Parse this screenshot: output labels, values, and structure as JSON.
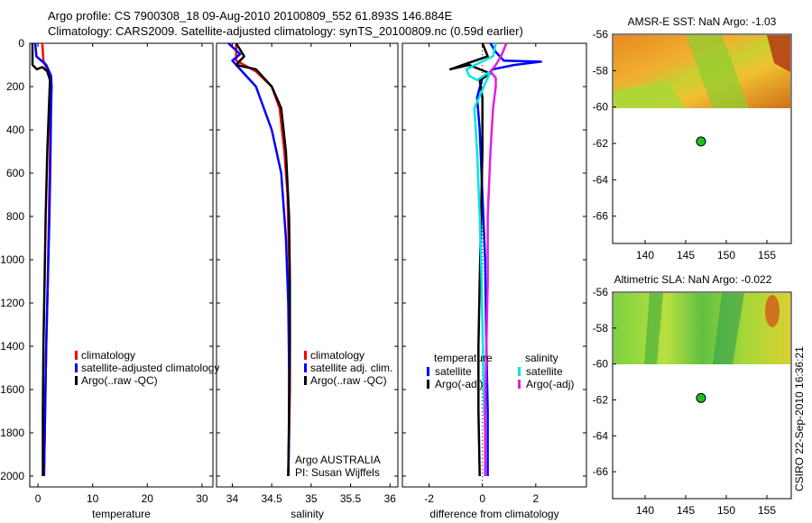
{
  "title": {
    "line1": "Argo profile: CS 7900308_18 09-Aug-2010 20100809_552 61.893S 146.884E",
    "line2": "Climatology: CARS2009. Satellite-adjusted climatology: synTS_20100809.nc (0.59d earlier)"
  },
  "colors": {
    "climatology": "#ff0000",
    "satellite": "#0000ff",
    "argo": "#000000",
    "temp_satellite": "#0000ff",
    "sal_satellite": "#00e5e5",
    "sal_argo": "#e020e0",
    "marker": "#22bb22"
  },
  "chart_data": [
    {
      "type": "line",
      "name": "temperature-profile",
      "xlabel": "temperature",
      "xlim": [
        -1.5,
        32
      ],
      "xticks": [
        0,
        10,
        20,
        30
      ],
      "ylim": [
        2050,
        0
      ],
      "yticks": [
        0,
        200,
        400,
        600,
        800,
        1000,
        1200,
        1400,
        1600,
        1800,
        2000
      ],
      "legend": [
        "climatology",
        "satellite-adjusted climatology",
        "Argo(..raw -QC)"
      ],
      "series": [
        {
          "name": "climatology",
          "color": "#ff0000",
          "x": [
            0.8,
            1.0,
            1.8,
            2.2,
            2.3,
            2.3,
            2.2,
            2.0,
            1.8,
            1.5,
            1.3,
            1.1
          ],
          "y": [
            0,
            80,
            130,
            160,
            200,
            300,
            500,
            800,
            1100,
            1400,
            1700,
            2000
          ]
        },
        {
          "name": "satellite-adjusted climatology",
          "color": "#0000ff",
          "x": [
            -0.5,
            -0.3,
            1.5,
            2.4,
            2.5,
            2.4,
            2.3,
            2.1,
            1.8,
            1.5,
            1.3,
            1.1
          ],
          "y": [
            0,
            60,
            100,
            150,
            200,
            300,
            500,
            800,
            1100,
            1400,
            1700,
            2000
          ]
        },
        {
          "name": "Argo(..raw -QC)",
          "color": "#000000",
          "x": [
            -1.0,
            -1.0,
            -0.2,
            0.8,
            1.7,
            2.2,
            2.0,
            1.7,
            1.4,
            1.2,
            1.0,
            0.9,
            0.9
          ],
          "y": [
            0,
            100,
            120,
            110,
            130,
            170,
            300,
            500,
            800,
            1100,
            1400,
            1700,
            2000
          ]
        }
      ]
    },
    {
      "type": "line",
      "name": "salinity-profile",
      "xlabel": "salinity",
      "xlim": [
        33.8,
        36.1
      ],
      "xticks": [
        34,
        34.5,
        35,
        35.5,
        36
      ],
      "xticklabels": [
        "34",
        "34.5",
        "35",
        "35.5",
        "36"
      ],
      "ylim": [
        2050,
        0
      ],
      "legend": [
        "climatology",
        "satellite adj. clim.",
        "Argo(..raw -QC)"
      ],
      "annotation": [
        "Argo AUSTRALIA",
        "PI: Susan Wijffels"
      ],
      "series": [
        {
          "name": "climatology",
          "color": "#ff0000",
          "x": [
            34.05,
            34.05,
            34.3,
            34.5,
            34.6,
            34.66,
            34.7,
            34.72,
            34.73,
            34.73,
            34.72,
            34.71
          ],
          "y": [
            0,
            80,
            130,
            200,
            300,
            500,
            700,
            1000,
            1300,
            1600,
            1800,
            2000
          ]
        },
        {
          "name": "satellite adj. clim.",
          "color": "#0000ff",
          "x": [
            33.95,
            34.1,
            34.0,
            34.05,
            34.3,
            34.5,
            34.62,
            34.68,
            34.71,
            34.72,
            34.72,
            34.71
          ],
          "y": [
            0,
            50,
            80,
            100,
            200,
            400,
            600,
            900,
            1200,
            1500,
            1800,
            2000
          ]
        },
        {
          "name": "Argo(..raw -QC)",
          "color": "#000000",
          "x": [
            34.05,
            34.15,
            34.05,
            34.3,
            34.5,
            34.62,
            34.68,
            34.72,
            34.73,
            34.73,
            34.72,
            34.71
          ],
          "y": [
            0,
            60,
            100,
            120,
            200,
            300,
            500,
            800,
            1100,
            1400,
            1700,
            2000
          ]
        }
      ]
    },
    {
      "type": "line",
      "name": "difference-from-climatology",
      "xlabel": "difference from climatology",
      "xlim": [
        -3,
        3.9
      ],
      "xticks": [
        -2,
        0,
        2
      ],
      "ylim": [
        2050,
        0
      ],
      "legend_groups": [
        {
          "title": "temperature",
          "items": [
            {
              "label": "satellite",
              "color": "#0000ff"
            },
            {
              "label": "Argo(-adj)",
              "color": "#000000"
            }
          ]
        },
        {
          "title": "salinity",
          "items": [
            {
              "label": "satellite",
              "color": "#00e5e5"
            },
            {
              "label": "Argo(-adj)",
              "color": "#e020e0"
            }
          ]
        }
      ],
      "series": [
        {
          "name": "temperature satellite",
          "color": "#0000ff",
          "x": [
            0.3,
            0.5,
            0.8,
            2.2,
            1.2,
            0.4,
            0.0,
            -0.2,
            -0.1,
            0.0,
            0.1,
            0.15,
            0.2,
            0.2
          ],
          "y": [
            0,
            40,
            80,
            85,
            100,
            120,
            160,
            250,
            400,
            700,
            1000,
            1400,
            1700,
            2000
          ]
        },
        {
          "name": "temperature Argo(-adj)",
          "color": "#000000",
          "x": [
            0.0,
            0.2,
            -1.2,
            -0.5,
            0.3,
            -0.1,
            0.0,
            0.0,
            -0.05,
            -0.1,
            -0.15,
            -0.15,
            -0.1
          ],
          "y": [
            0,
            60,
            120,
            100,
            140,
            170,
            250,
            500,
            800,
            1100,
            1400,
            1700,
            2000
          ]
        },
        {
          "name": "salinity satellite",
          "color": "#00e5e5",
          "x": [
            0.5,
            0.4,
            -0.6,
            -0.5,
            -0.2,
            0.3,
            -0.3,
            -0.2,
            -0.1,
            -0.05,
            0.0,
            0.05,
            0.1,
            0.1
          ],
          "y": [
            0,
            60,
            120,
            150,
            170,
            130,
            300,
            500,
            800,
            1000,
            1300,
            1600,
            1800,
            2000
          ]
        },
        {
          "name": "salinity Argo(-adj)",
          "color": "#e020e0",
          "x": [
            0.9,
            0.7,
            0.5,
            0.3,
            0.5,
            0.5,
            0.4,
            0.3,
            0.2,
            0.2,
            0.15,
            0.1,
            0.1
          ],
          "y": [
            0,
            60,
            100,
            130,
            160,
            200,
            300,
            500,
            800,
            1100,
            1400,
            1700,
            2000
          ]
        }
      ]
    },
    {
      "type": "heatmap",
      "name": "amsre-sst-map",
      "title": "AMSR-E SST: NaN Argo: -1.03",
      "xlim": [
        136,
        158
      ],
      "ylim": [
        -67.5,
        -56
      ],
      "xticks": [
        140,
        145,
        150,
        155
      ],
      "yticks": [
        -56,
        -58,
        -60,
        -62,
        -64,
        -66
      ],
      "data_lat_range": [
        -60.2,
        -56
      ],
      "marker": {
        "lon": 146.884,
        "lat": -61.893
      }
    },
    {
      "type": "heatmap",
      "name": "altimetric-sla-map",
      "title": "Altimetric SLA: NaN Argo: -0.022",
      "xlim": [
        136,
        158
      ],
      "ylim": [
        -67.5,
        -56
      ],
      "xticks": [
        140,
        145,
        150,
        155
      ],
      "yticks": [
        -56,
        -58,
        -60,
        -62,
        -64,
        -66
      ],
      "data_lat_range": [
        -60.2,
        -56
      ],
      "marker": {
        "lon": 146.884,
        "lat": -61.893
      }
    }
  ],
  "footer": "CSIRO 22-Sep-2010 16:36:21"
}
